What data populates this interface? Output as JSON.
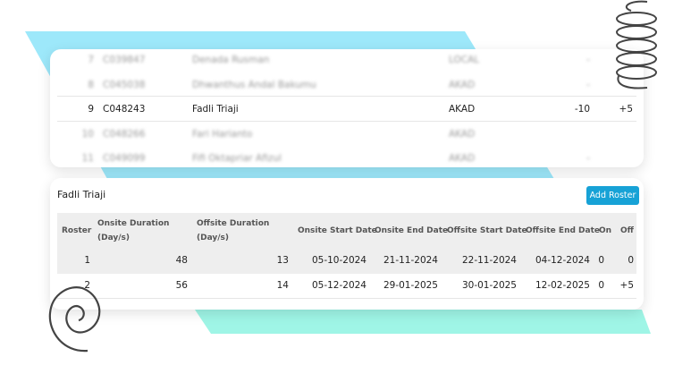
{
  "employee_list": {
    "rows": [
      {
        "no": "7",
        "code": "C039847",
        "name": "Denada Rusman",
        "type": "LOCAL",
        "on": "-",
        "off": "",
        "blurred": true
      },
      {
        "no": "8",
        "code": "C045038",
        "name": "Dhwanthus Andal Bakumu",
        "type": "AKAD",
        "on": "-",
        "off": "",
        "blurred": true
      },
      {
        "no": "9",
        "code": "C048243",
        "name": "Fadli Triaji",
        "type": "AKAD",
        "on": "-10",
        "off": "+5",
        "blurred": false
      },
      {
        "no": "10",
        "code": "C048266",
        "name": "Fari Harianto",
        "type": "AKAD",
        "on": "",
        "off": "",
        "blurred": true
      },
      {
        "no": "11",
        "code": "C049099",
        "name": "Fifi Oktapriar Afizul",
        "type": "AKAD",
        "on": "-",
        "off": "",
        "blurred": true
      }
    ]
  },
  "roster_panel": {
    "title": "Fadli Triaji",
    "add_button": "Add Roster",
    "accent": "#17a2d6",
    "headers": {
      "roster": "Roster",
      "onsite_duration_1": "Onsite Duration",
      "onsite_duration_2": "(Day/s)",
      "offsite_duration_1": "Offsite Duration",
      "offsite_duration_2": "(Day/s)",
      "onsite_start": "Onsite Start Date",
      "onsite_end": "Onsite End Date",
      "offsite_start": "Offsite Start Date",
      "offsite_end": "Offsite End Date",
      "on": "On",
      "off": "Off"
    },
    "rows": [
      {
        "roster": "1",
        "onsite_duration": "48",
        "offsite_duration": "13",
        "onsite_start": "05-10-2024",
        "onsite_end": "21-11-2024",
        "offsite_start": "22-11-2024",
        "offsite_end": "04-12-2024",
        "on": "0",
        "off": "0"
      },
      {
        "roster": "2",
        "onsite_duration": "56",
        "offsite_duration": "14",
        "onsite_start": "05-12-2024",
        "onsite_end": "29-01-2025",
        "offsite_start": "30-01-2025",
        "offsite_end": "12-02-2025",
        "on": "0",
        "off": "+5"
      }
    ]
  },
  "decor": {
    "cyan": "#9de8fa",
    "mint": "#9ff5e6",
    "spring_icon": "coil-spring",
    "spiral_icon": "spiral"
  }
}
